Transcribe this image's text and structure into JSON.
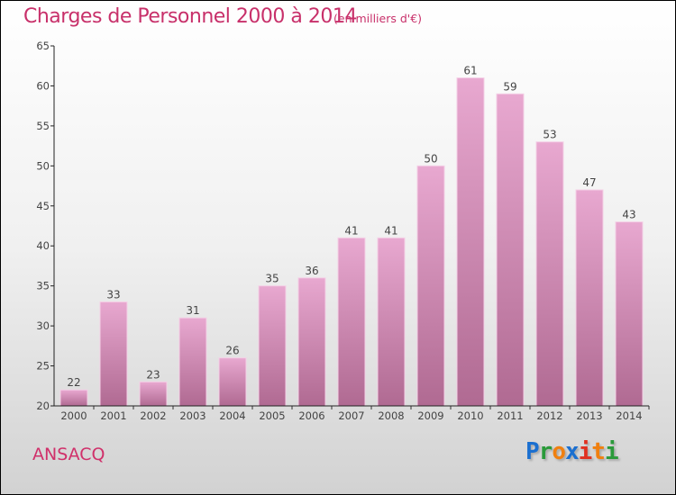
{
  "chart_data": {
    "type": "bar",
    "title": "Charges de Personnel 2000 à 2014",
    "subtitle": "(en milliers d'€)",
    "xlabel": "",
    "ylabel": "",
    "categories": [
      "2000",
      "2001",
      "2002",
      "2003",
      "2004",
      "2005",
      "2006",
      "2007",
      "2008",
      "2009",
      "2010",
      "2011",
      "2012",
      "2013",
      "2014"
    ],
    "values": [
      22,
      33,
      23,
      31,
      26,
      35,
      36,
      41,
      41,
      50,
      61,
      59,
      53,
      47,
      43
    ],
    "ylim": [
      20,
      65
    ],
    "yticks": [
      20,
      25,
      30,
      35,
      40,
      45,
      50,
      55,
      60,
      65
    ],
    "grid": false,
    "legend": "none"
  },
  "town": "ANSACQ",
  "logo": {
    "letters": [
      "P",
      "r",
      "o",
      "x",
      "i",
      "t",
      "i"
    ],
    "colors": [
      "#1a6fd0",
      "#2a9a3a",
      "#f08010",
      "#1a6fd0",
      "#e03020",
      "#f08010",
      "#2a9a3a"
    ]
  },
  "colors": {
    "bar_top": "#e8a8d0",
    "bar_bottom": "#b06a92",
    "title": "#c8306a"
  }
}
